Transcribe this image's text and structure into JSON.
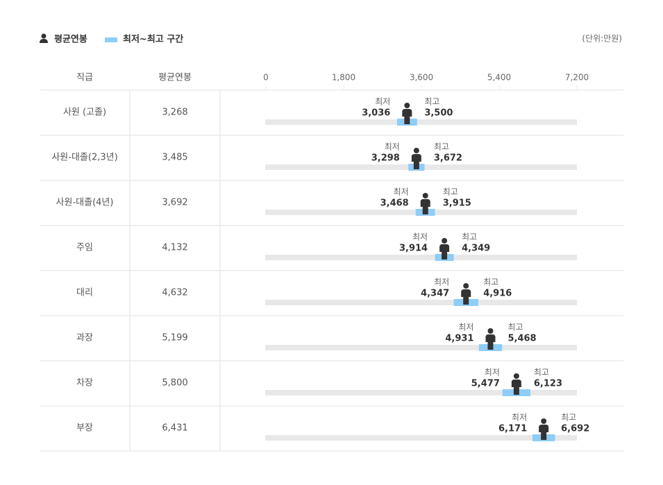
{
  "chart_data": {
    "type": "range",
    "range_legend": "최저~최고 구간",
    "unit_note": "(단위:만원)",
    "category_header": "직급",
    "categories": [
      "사원 (고졸)",
      "사원-대졸(2,3년)",
      "사원-대졸(4년)",
      "주임",
      "대리",
      "과장",
      "차장",
      "부장"
    ],
    "series": [
      {
        "name": "평균연봉",
        "color": "#333333",
        "values": [
          3268,
          3485,
          3692,
          4132,
          4632,
          5199,
          5800,
          6431
        ],
        "value_labels": [
          "3,268",
          "3,485",
          "3,692",
          "4,132",
          "4,632",
          "5,199",
          "5,800",
          "6,431"
        ]
      },
      {
        "name": "최저",
        "values": [
          3036,
          3298,
          3468,
          3914,
          4347,
          4931,
          5477,
          6171
        ],
        "value_labels": [
          "3,036",
          "3,298",
          "3,468",
          "3,914",
          "4,347",
          "4,931",
          "5,477",
          "6,171"
        ]
      },
      {
        "name": "최고",
        "values": [
          3500,
          3672,
          3915,
          4349,
          4916,
          5468,
          6123,
          6692
        ],
        "value_labels": [
          "3,500",
          "3,672",
          "3,915",
          "4,349",
          "4,916",
          "5,468",
          "6,123",
          "6,692"
        ]
      }
    ],
    "range_color": "#8ecdf7",
    "track_color": "#e8e8e8",
    "xlim": [
      0,
      7200
    ],
    "xticks": [
      0,
      {
        "value": 1800,
        "label": "1,800"
      },
      {
        "value": 3600,
        "label": "3,600"
      },
      {
        "value": 5400,
        "label": "5,400"
      },
      {
        "value": 7200,
        "label": "7,200"
      }
    ]
  }
}
